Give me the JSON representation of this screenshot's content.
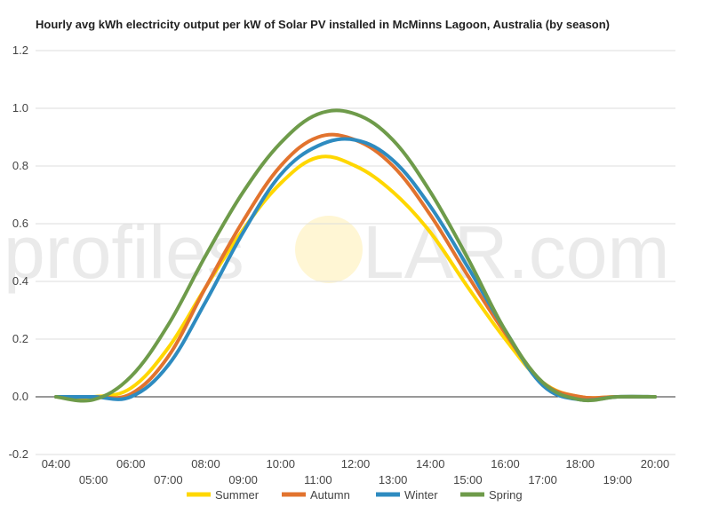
{
  "chart_data": {
    "type": "line",
    "title": "Hourly avg kWh electricity output per kW of Solar PV installed in McMinns Lagoon, Australia (by season)",
    "xlabel": "",
    "ylabel": "",
    "ylim": [
      -0.2,
      1.2
    ],
    "yticks": [
      "-0.2",
      "0.0",
      "0.2",
      "0.4",
      "0.6",
      "0.8",
      "1.0",
      "1.2"
    ],
    "categories": [
      "04:00",
      "05:00",
      "06:00",
      "07:00",
      "08:00",
      "09:00",
      "10:00",
      "11:00",
      "12:00",
      "13:00",
      "14:00",
      "15:00",
      "16:00",
      "17:00",
      "18:00",
      "19:00",
      "20:00"
    ],
    "grid": true,
    "legend_position": "bottom",
    "series": [
      {
        "name": "Summer",
        "color": "#ffd700",
        "values": [
          0.0,
          0.0,
          0.03,
          0.17,
          0.38,
          0.58,
          0.74,
          0.83,
          0.8,
          0.71,
          0.57,
          0.38,
          0.2,
          0.05,
          0.0,
          0.0,
          0.0
        ]
      },
      {
        "name": "Autumn",
        "color": "#e2732e",
        "values": [
          0.0,
          0.0,
          0.01,
          0.14,
          0.38,
          0.61,
          0.8,
          0.9,
          0.89,
          0.8,
          0.63,
          0.42,
          0.22,
          0.05,
          0.0,
          0.0,
          0.0
        ]
      },
      {
        "name": "Winter",
        "color": "#2e8bc0",
        "values": [
          0.0,
          0.0,
          0.0,
          0.11,
          0.33,
          0.57,
          0.77,
          0.87,
          0.89,
          0.82,
          0.66,
          0.45,
          0.23,
          0.04,
          -0.01,
          0.0,
          0.0
        ]
      },
      {
        "name": "Spring",
        "color": "#6e9b4a",
        "values": [
          0.0,
          -0.01,
          0.07,
          0.25,
          0.49,
          0.71,
          0.88,
          0.98,
          0.98,
          0.89,
          0.71,
          0.48,
          0.23,
          0.05,
          -0.01,
          0.0,
          0.0
        ]
      }
    ]
  },
  "watermark": {
    "left_text": "profiles",
    "right_text": "LAR.com",
    "sun_color": "#fff4cc"
  }
}
